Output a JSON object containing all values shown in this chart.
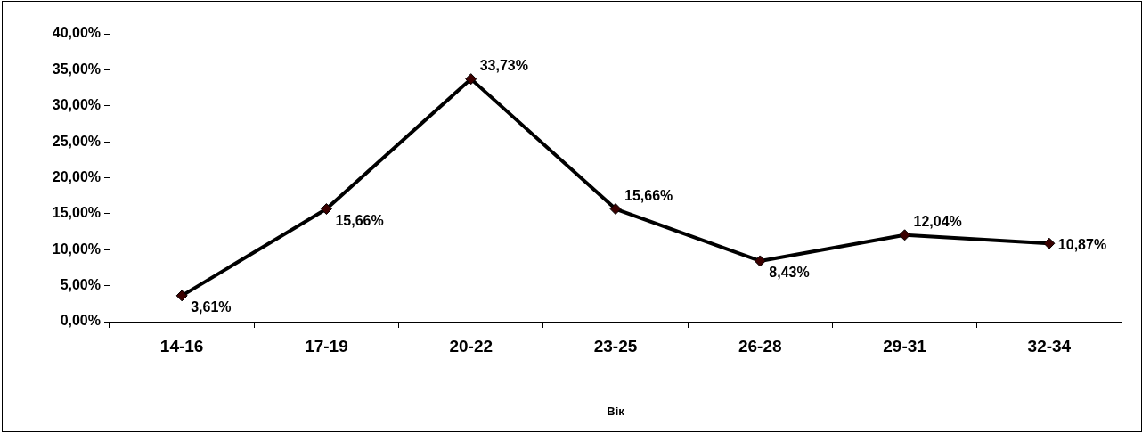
{
  "chart_data": {
    "type": "line",
    "xlabel": "Вік",
    "categories": [
      "14-16",
      "17-19",
      "20-22",
      "23-25",
      "26-28",
      "29-31",
      "32-34"
    ],
    "values": [
      3.61,
      15.66,
      33.73,
      15.66,
      8.43,
      12.04,
      10.87
    ],
    "value_labels": [
      "3,61%",
      "15,66%",
      "33,73%",
      "15,66%",
      "8,43%",
      "12,04%",
      "10,87%"
    ],
    "color": "#000000",
    "marker": "diamond",
    "line_style": "solid",
    "grid": false,
    "legend": false,
    "ylim": [
      0,
      40
    ],
    "yticks": [
      {
        "value": 0,
        "label": "0,00%"
      },
      {
        "value": 5,
        "label": "5,00%"
      },
      {
        "value": 10,
        "label": "10,00%"
      },
      {
        "value": 15,
        "label": "15,00%"
      },
      {
        "value": 20,
        "label": "20,00%"
      },
      {
        "value": 25,
        "label": "25,00%"
      },
      {
        "value": 30,
        "label": "30,00%"
      },
      {
        "value": 35,
        "label": "35,00%"
      },
      {
        "value": 40,
        "label": "40,00%"
      }
    ]
  }
}
